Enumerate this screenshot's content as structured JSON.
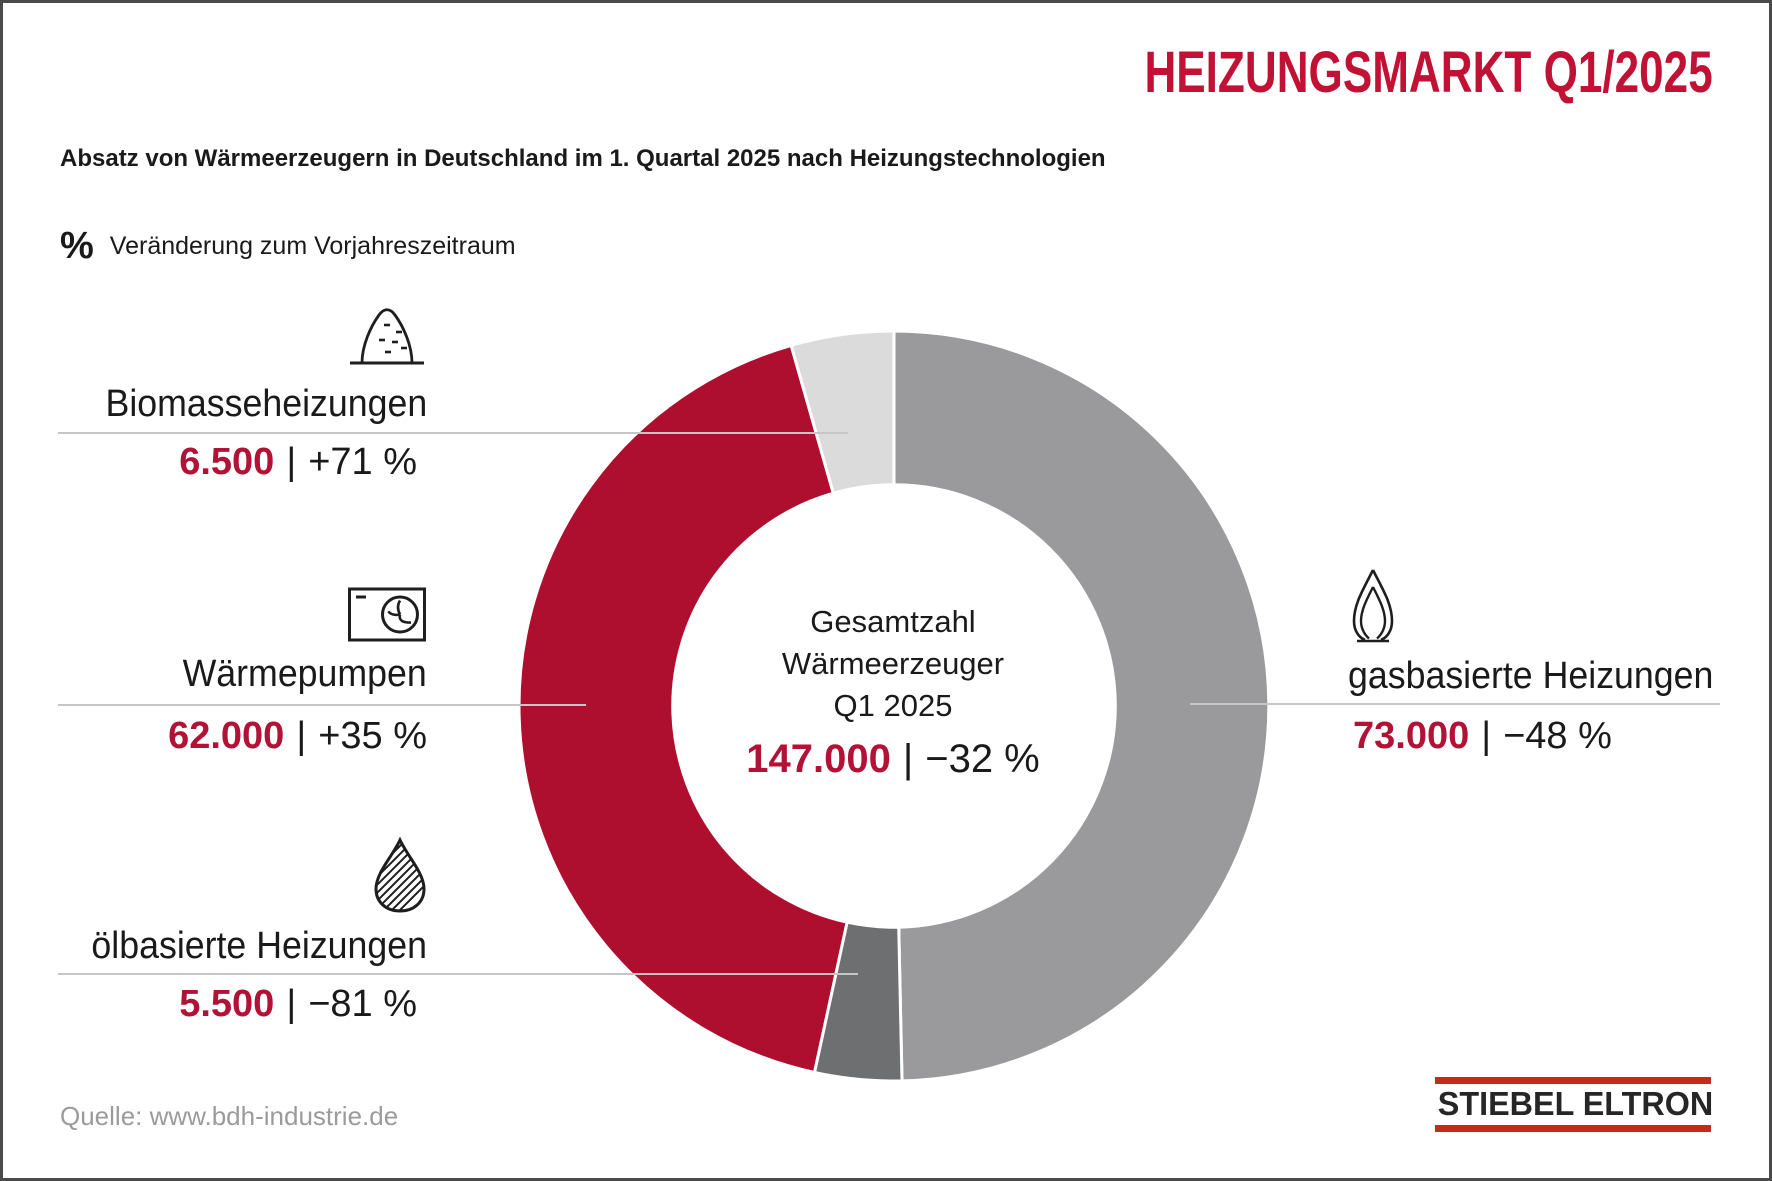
{
  "header": {
    "title": "HEIZUNGSMARKT Q1/2025",
    "subtitle": "Absatz von Wärmeerzeugern in Deutschland im 1. Quartal 2025 nach Heizungstechnologien",
    "pct_symbol": "%",
    "pct_note": "Veränderung zum Vorjahreszeitraum"
  },
  "separator": "|",
  "chart_data": {
    "type": "pie",
    "subtype": "donut",
    "title": "Absatz von Wärmeerzeugern in Deutschland im 1. Quartal 2025 nach Heizungstechnologien",
    "unit_note": "Veränderung zum Vorjahreszeitraum in %",
    "start_angle_deg": 0,
    "clockwise": true,
    "donut_hole_ratio": 0.59,
    "total": {
      "line1": "Gesamtzahl",
      "line2": "Wärmeerzeuger",
      "line3": "Q1 2025",
      "value": 147000,
      "value_display": "147.000",
      "change_display": "−32 %"
    },
    "segments": [
      {
        "label": "gasbasierte Heizungen",
        "value": 73000,
        "value_display": "73.000",
        "change_display": "−48 %",
        "color": "#9a9a9c",
        "icon": "gas-flame-icon"
      },
      {
        "label": "ölbasierte Heizungen",
        "value": 5500,
        "value_display": "5.500",
        "change_display": "−81 %",
        "color": "#6e6f71",
        "icon": "oil-drop-icon"
      },
      {
        "label": "Wärmepumpen",
        "value": 62000,
        "value_display": "62.000",
        "change_display": "+35 %",
        "color": "#af0f2f",
        "icon": "heat-pump-icon"
      },
      {
        "label": "Biomasseheizungen",
        "value": 6500,
        "value_display": "6.500",
        "change_display": "+71 %",
        "color": "#dbdbdb",
        "icon": "biomass-pile-icon"
      }
    ]
  },
  "footer": {
    "source": "Quelle: www.bdh-industrie.de",
    "logo": "STIEBEL ELTRON"
  },
  "colors": {
    "accent_red": "#c11236",
    "number_red": "#b11235",
    "segment_red": "#af0f2f",
    "gas_gray": "#9a9a9c",
    "oil_gray": "#6e6f71",
    "biomass_gray": "#dbdbdb",
    "logo_red": "#c5281e",
    "leader_line_gray": "#c6c6c6",
    "muted_text_gray": "#9b9b9b",
    "border_gray": "#4a4a4a"
  }
}
